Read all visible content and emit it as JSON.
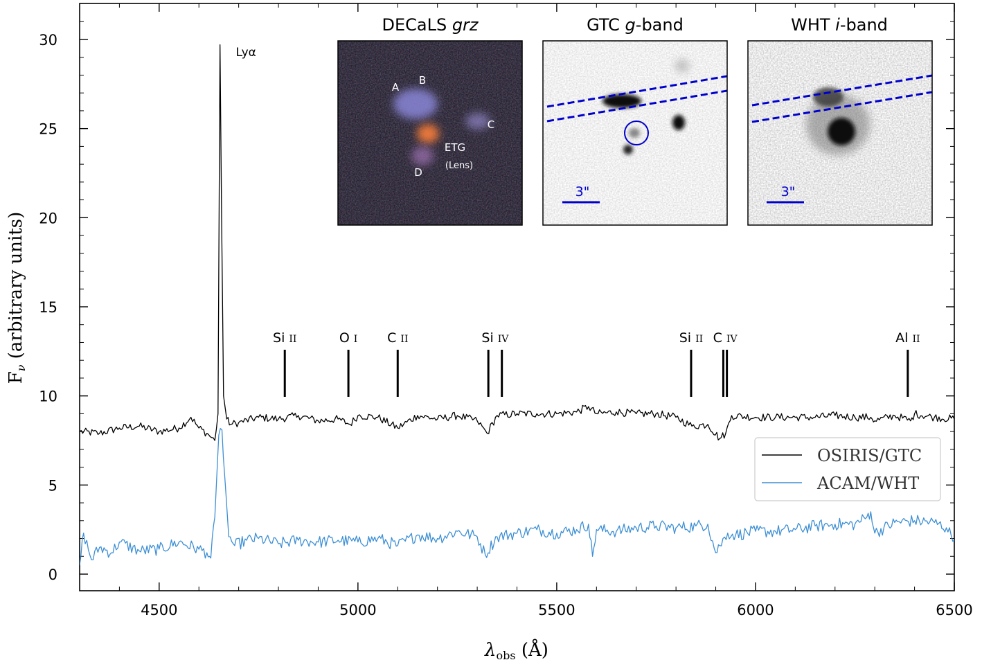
{
  "chart_data": {
    "type": "line",
    "xlabel": "λobs (Å)",
    "ylabel": "Fν (arbitrary units)",
    "xlim": [
      4300,
      6500
    ],
    "ylim": [
      -1,
      32
    ],
    "x_ticks": [
      4500,
      5000,
      5500,
      6000,
      6500
    ],
    "y_ticks": [
      0,
      5,
      10,
      15,
      20,
      25,
      30
    ],
    "legend": {
      "placement": "lower-right",
      "entries": [
        "OSIRIS/GTC",
        "ACAM/WHT"
      ]
    },
    "colors": {
      "OSIRIS/GTC": "#000000",
      "ACAM/WHT": "#3d8fd4",
      "overlay": "#0000cc"
    },
    "series": [
      {
        "name": "OSIRIS/GTC",
        "x": [
          4300,
          4350,
          4400,
          4450,
          4500,
          4550,
          4580,
          4600,
          4620,
          4640,
          4648,
          4653,
          4657,
          4662,
          4670,
          4680,
          4700,
          4750,
          4800,
          4850,
          4900,
          4950,
          4980,
          5000,
          5050,
          5100,
          5150,
          5200,
          5250,
          5300,
          5325,
          5350,
          5400,
          5450,
          5500,
          5550,
          5580,
          5600,
          5650,
          5700,
          5750,
          5800,
          5840,
          5880,
          5910,
          5925,
          5940,
          6000,
          6050,
          6100,
          6150,
          6200,
          6250,
          6290,
          6300,
          6350,
          6390,
          6400,
          6450,
          6500
        ],
        "y": [
          8.0,
          7.9,
          8.2,
          8.3,
          8.0,
          8.2,
          8.8,
          8.2,
          7.9,
          7.5,
          9.0,
          29.7,
          20.0,
          10.0,
          8.7,
          8.4,
          8.5,
          8.8,
          8.7,
          8.9,
          8.6,
          8.7,
          8.4,
          8.9,
          8.8,
          8.2,
          8.9,
          8.7,
          8.9,
          8.6,
          7.9,
          8.9,
          9.0,
          9.0,
          9.0,
          9.1,
          9.4,
          9.0,
          9.1,
          9.0,
          9.0,
          8.8,
          8.3,
          8.4,
          7.6,
          7.9,
          8.9,
          8.8,
          8.8,
          8.8,
          8.8,
          8.9,
          8.8,
          8.8,
          8.6,
          8.9,
          8.6,
          9.0,
          8.8,
          8.7
        ]
      },
      {
        "name": "ACAM/WHT",
        "x": [
          4300,
          4310,
          4330,
          4350,
          4380,
          4400,
          4450,
          4500,
          4550,
          4600,
          4620,
          4630,
          4640,
          4650,
          4658,
          4665,
          4675,
          4690,
          4720,
          4750,
          4800,
          4850,
          4900,
          4950,
          5000,
          5050,
          5100,
          5150,
          5200,
          5250,
          5300,
          5320,
          5350,
          5400,
          5450,
          5500,
          5550,
          5580,
          5590,
          5600,
          5650,
          5700,
          5750,
          5800,
          5850,
          5880,
          5900,
          5910,
          5930,
          5950,
          6000,
          6050,
          6100,
          6150,
          6200,
          6250,
          6280,
          6290,
          6300,
          6350,
          6400,
          6450,
          6480,
          6500
        ],
        "y": [
          0.5,
          2.3,
          0.8,
          1.5,
          1.2,
          1.8,
          1.3,
          1.4,
          1.8,
          1.4,
          1.2,
          0.9,
          3.2,
          7.8,
          8.1,
          5.5,
          2.1,
          1.6,
          1.9,
          2.0,
          1.7,
          1.9,
          1.8,
          1.9,
          1.8,
          2.0,
          1.6,
          2.2,
          2.0,
          2.4,
          2.1,
          1.1,
          2.1,
          2.3,
          2.5,
          2.3,
          2.5,
          2.8,
          1.0,
          2.5,
          2.4,
          2.6,
          2.7,
          2.6,
          2.7,
          2.8,
          1.2,
          1.6,
          2.3,
          2.2,
          2.4,
          2.4,
          2.5,
          2.7,
          2.8,
          2.8,
          3.2,
          3.5,
          2.3,
          2.9,
          3.0,
          2.9,
          2.6,
          1.9
        ]
      }
    ],
    "line_markers": [
      {
        "label": "Si",
        "ion": "II",
        "wavelengths": [
          4816
        ]
      },
      {
        "label": "O",
        "ion": "I",
        "wavelengths": [
          4976
        ]
      },
      {
        "label": "C",
        "ion": "II",
        "wavelengths": [
          5100
        ]
      },
      {
        "label": "Si",
        "ion": "IV",
        "wavelengths": [
          5328,
          5362
        ]
      },
      {
        "label": "Si",
        "ion": "II",
        "wavelengths": [
          5838
        ]
      },
      {
        "label": "C",
        "ion": "IV",
        "wavelengths": [
          5919,
          5928
        ]
      },
      {
        "label": "Al",
        "ion": "II",
        "wavelengths": [
          6383
        ]
      }
    ],
    "annotations": [
      {
        "text": "Lyα",
        "x": 4660,
        "y": 29.3
      }
    ],
    "insets": [
      {
        "title_prefix": "DECaLS ",
        "title_italic": "grz",
        "title_suffix": "",
        "labels": [
          "A",
          "B",
          "C",
          "ETG",
          "(Lens)",
          "D"
        ]
      },
      {
        "title_prefix": "GTC ",
        "title_italic": "g",
        "title_suffix": "-band",
        "scale_label": "3\""
      },
      {
        "title_prefix": "WHT ",
        "title_italic": "i",
        "title_suffix": "-band",
        "scale_label": "3\""
      }
    ]
  }
}
